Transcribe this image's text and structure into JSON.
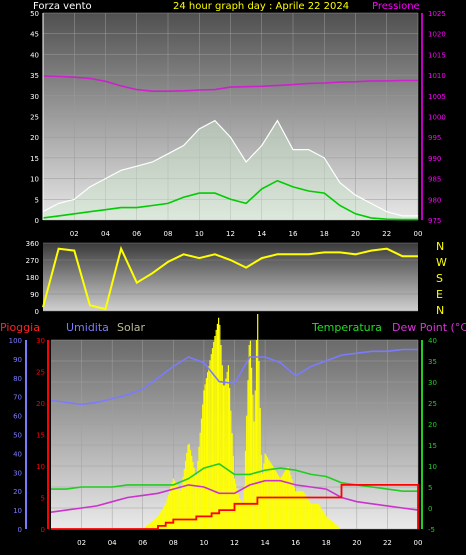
{
  "colors": {
    "background": "#000000",
    "wind": "#ffffff",
    "wind_avg": "#00cc00",
    "pressure": "#cc22cc",
    "winddir": "#ffff00",
    "humidity": "#7b7bff",
    "solar": "#ffff00",
    "temperature": "#22cc22",
    "dewpoint": "#cc33cc",
    "rain": "#ff0000",
    "tick_left": "#ffffff",
    "tick_pressure": "#ff00ff"
  },
  "header": {
    "wind_title": "Forza vento",
    "date_title": "24 hour graph day : Aprile 22 2024",
    "pressure_title": "Pressione"
  },
  "legend": {
    "pioggia": "Pioggia",
    "umidita": "Umidita",
    "solar": "Solar",
    "temperatura": "Temperatura",
    "dew_point": "Dew Point (°C)"
  },
  "compass": [
    "N",
    "W",
    "S",
    "E",
    "N"
  ],
  "chart_data": [
    {
      "type": "line",
      "name": "wind_pressure",
      "x_ticks": [
        "02",
        "04",
        "06",
        "08",
        "10",
        "12",
        "14",
        "16",
        "18",
        "20",
        "22",
        "00"
      ],
      "y_left_ticks": [
        "0",
        "5",
        "10",
        "15",
        "20",
        "25",
        "30",
        "35",
        "40",
        "45",
        "50"
      ],
      "y_left_range": [
        0,
        50
      ],
      "y_right_ticks": [
        "975",
        "980",
        "985",
        "990",
        "995",
        "1000",
        "1005",
        "1010",
        "1015",
        "1020",
        "1025"
      ],
      "y_right_range": [
        975,
        1025
      ],
      "pressure": {
        "x_hours": [
          0,
          1,
          2,
          3,
          4,
          5,
          6,
          7,
          8,
          9,
          10,
          11,
          12,
          13,
          14,
          15,
          16,
          17,
          18,
          19,
          20,
          21,
          22,
          23,
          24
        ],
        "values": [
          1009.8,
          1009.7,
          1009.5,
          1009.2,
          1008.5,
          1007.4,
          1006.5,
          1006.1,
          1006.1,
          1006.2,
          1006.4,
          1006.5,
          1007.1,
          1007.2,
          1007.3,
          1007.5,
          1007.7,
          1008.0,
          1008.1,
          1008.3,
          1008.4,
          1008.6,
          1008.6,
          1008.7,
          1008.7
        ]
      },
      "wind_avg": {
        "x_hours": [
          0,
          1,
          2,
          3,
          4,
          5,
          6,
          7,
          8,
          9,
          10,
          11,
          12,
          13,
          14,
          15,
          16,
          17,
          18,
          19,
          20,
          21,
          22,
          23,
          24
        ],
        "values": [
          0.5,
          1,
          1.5,
          2,
          2.5,
          3,
          3,
          3.5,
          4,
          5.5,
          6.5,
          6.5,
          5,
          4,
          7.5,
          9.5,
          8,
          7,
          6.5,
          3.5,
          1.5,
          0.5,
          0.2,
          0.1,
          0.1
        ]
      },
      "wind_gust": {
        "x_hours": [
          0,
          1,
          2,
          3,
          4,
          5,
          6,
          7,
          8,
          9,
          10,
          11,
          12,
          13,
          14,
          15,
          16,
          17,
          18,
          19,
          20,
          21,
          22,
          23,
          24
        ],
        "values": [
          2,
          4,
          5,
          8,
          10,
          12,
          13,
          14,
          16,
          18,
          22,
          24,
          20,
          14,
          18,
          24,
          17,
          17,
          15,
          9,
          6,
          4,
          2,
          1,
          1
        ]
      }
    },
    {
      "type": "line",
      "name": "wind_direction",
      "y_ticks": [
        "0",
        "90",
        "180",
        "270",
        "360"
      ],
      "y_range": [
        0,
        360
      ],
      "direction": {
        "x_hours": [
          0,
          1,
          2,
          3,
          4,
          5,
          6,
          7,
          8,
          9,
          10,
          11,
          12,
          13,
          14,
          15,
          16,
          17,
          18,
          19,
          20,
          21,
          22,
          23,
          24
        ],
        "values": [
          20,
          330,
          320,
          30,
          10,
          330,
          150,
          200,
          260,
          300,
          280,
          300,
          270,
          230,
          280,
          300,
          300,
          300,
          310,
          310,
          300,
          320,
          330,
          290,
          290
        ]
      }
    },
    {
      "type": "line",
      "name": "solar_temp_humidity_rain",
      "x_ticks": [
        "02",
        "04",
        "06",
        "08",
        "10",
        "12",
        "14",
        "16",
        "18",
        "20",
        "22",
        "00"
      ],
      "y_humidity_ticks": [
        "0",
        "10",
        "20",
        "30",
        "40",
        "50",
        "60",
        "70",
        "80",
        "90",
        "100"
      ],
      "y_humidity_range": [
        0,
        100
      ],
      "y_rain_ticks": [
        "0",
        "5",
        "10",
        "15",
        "20",
        "25",
        "30"
      ],
      "y_rain_range": [
        0,
        30
      ],
      "y_temp_ticks": [
        "-5",
        "0",
        "5",
        "10",
        "15",
        "20",
        "25",
        "30",
        "35",
        "40"
      ],
      "y_temp_range": [
        -5,
        40
      ],
      "humidity": {
        "x_hours": [
          0,
          1,
          2,
          3,
          4,
          5,
          6,
          7,
          8,
          9,
          10,
          11,
          12,
          13,
          14,
          15,
          16,
          17,
          18,
          19,
          20,
          21,
          22,
          23,
          24
        ],
        "values": [
          68,
          67,
          66,
          67,
          69,
          71,
          74,
          80,
          86,
          91,
          88,
          78,
          77,
          91,
          91,
          88,
          81,
          86,
          89,
          92,
          93,
          94,
          94,
          95,
          95
        ]
      },
      "temperature": {
        "x_hours": [
          0,
          1,
          2,
          3,
          4,
          5,
          6,
          7,
          8,
          9,
          10,
          11,
          12,
          13,
          14,
          15,
          16,
          17,
          18,
          19,
          20,
          21,
          22,
          23,
          24
        ],
        "values": [
          4.5,
          4.5,
          5,
          5,
          5,
          5.5,
          5.5,
          5.5,
          5.5,
          7,
          9.5,
          10.5,
          8,
          8,
          9,
          9.5,
          9,
          8,
          7.5,
          6,
          5.5,
          5,
          4.5,
          4,
          4
        ]
      },
      "dewpoint": {
        "x_hours": [
          0,
          1,
          2,
          3,
          4,
          5,
          6,
          7,
          8,
          9,
          10,
          11,
          12,
          13,
          14,
          15,
          16,
          17,
          18,
          19,
          20,
          21,
          22,
          23,
          24
        ],
        "values": [
          -1,
          -0.5,
          0,
          0.5,
          1.5,
          2.5,
          3,
          3.5,
          4.5,
          5.5,
          5,
          3.5,
          3.5,
          5.5,
          6.5,
          6.5,
          5.5,
          5,
          4.5,
          2.5,
          1.5,
          1,
          0.5,
          0,
          -0.5
        ]
      },
      "rain": {
        "x_hours": [
          0,
          6,
          7,
          7.5,
          8,
          9.5,
          10.5,
          11,
          12,
          13.5,
          16,
          17,
          18,
          19,
          20,
          21,
          22,
          23,
          24
        ],
        "values": [
          0,
          0,
          0.5,
          1,
          1.5,
          2,
          2.5,
          3,
          4,
          5,
          5,
          5,
          5,
          7,
          7,
          7,
          7,
          7,
          0
        ]
      },
      "solar": {
        "x_hours": [
          0,
          6,
          7,
          7.5,
          8,
          8.5,
          9,
          9.5,
          10,
          10.5,
          11,
          11.3,
          11.6,
          12,
          12.3,
          12.6,
          13,
          13.3,
          13.5,
          13.8,
          14,
          14.5,
          15,
          15.5,
          16,
          16.5,
          17,
          17.5,
          18,
          18.5,
          19,
          24
        ],
        "values": [
          0,
          0,
          2,
          4,
          8,
          6,
          14,
          8,
          22,
          28,
          34,
          22,
          26,
          8,
          5,
          4,
          32,
          16,
          36,
          8,
          12,
          10,
          8,
          10,
          6,
          6,
          4,
          4,
          2,
          1,
          0,
          0
        ]
      }
    }
  ]
}
